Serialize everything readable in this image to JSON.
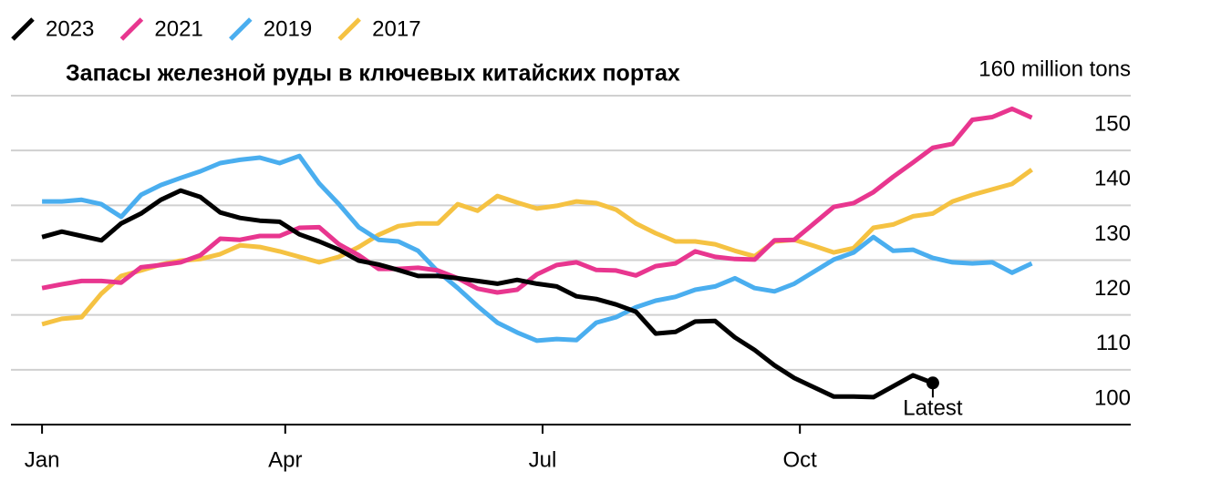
{
  "chart_data": {
    "type": "line",
    "title": "Запасы железной руды в ключевых китайских портах",
    "annotation": "Latest",
    "x": [
      0,
      7,
      14,
      21,
      28,
      35,
      42,
      49,
      56,
      63,
      70,
      77,
      84,
      91,
      98,
      105,
      112,
      119,
      126,
      133,
      140,
      147,
      154,
      161,
      168,
      175,
      182,
      189,
      196,
      203,
      210,
      217,
      224,
      231,
      238,
      245,
      252,
      259,
      266,
      273,
      280,
      287,
      294,
      301,
      308,
      315,
      322,
      329,
      336,
      343,
      350
    ],
    "xlim": [
      -11,
      385
    ],
    "xticks": [
      {
        "value": 0,
        "label": "Jan"
      },
      {
        "value": 86,
        "label": "Apr"
      },
      {
        "value": 177,
        "label": "Jul"
      },
      {
        "value": 268,
        "label": "Oct"
      }
    ],
    "ylim": [
      100,
      160
    ],
    "yticks": [
      100,
      110,
      120,
      130,
      140,
      150,
      {
        "value": 160,
        "label": "160 million tons"
      }
    ],
    "grid": true,
    "series": [
      {
        "name": "2023",
        "color": "#000000",
        "values": [
          134.2,
          135.2,
          134.4,
          133.6,
          136.7,
          138.5,
          141.0,
          142.7,
          141.5,
          138.7,
          137.7,
          137.2,
          137.0,
          134.7,
          133.4,
          131.9,
          129.9,
          129.2,
          128.2,
          127.1,
          127.1,
          126.7,
          126.2,
          125.7,
          126.4,
          125.7,
          125.2,
          123.4,
          122.9,
          121.9,
          120.6,
          116.6,
          116.9,
          118.8,
          118.9,
          115.9,
          113.6,
          110.8,
          108.5,
          106.8,
          105.1,
          105.1,
          105.0,
          107.0,
          109.0,
          107.6,
          null,
          null,
          null,
          null,
          null
        ]
      },
      {
        "name": "2021",
        "color": "#e8368f",
        "values": [
          124.9,
          125.6,
          126.2,
          126.2,
          125.9,
          128.7,
          129.1,
          129.6,
          130.9,
          133.9,
          133.7,
          134.4,
          134.4,
          135.9,
          136.0,
          132.9,
          130.9,
          128.4,
          128.4,
          128.6,
          128.1,
          126.7,
          124.8,
          124.1,
          124.6,
          127.4,
          129.1,
          129.6,
          128.2,
          128.1,
          127.2,
          128.9,
          129.4,
          131.6,
          130.6,
          130.2,
          130.1,
          133.6,
          133.7,
          136.7,
          139.7,
          140.4,
          142.4,
          145.2,
          147.8,
          150.5,
          151.2,
          155.6,
          156.1,
          157.6,
          156.0
        ]
      },
      {
        "name": "2019",
        "color": "#4aaeef",
        "values": [
          140.7,
          140.7,
          141.0,
          140.2,
          137.9,
          141.9,
          143.7,
          145.0,
          146.2,
          147.7,
          148.3,
          148.7,
          147.7,
          149.0,
          144.0,
          140.2,
          136.0,
          133.7,
          133.4,
          131.7,
          127.9,
          124.9,
          121.6,
          118.6,
          116.8,
          115.3,
          115.6,
          115.4,
          118.6,
          119.6,
          121.4,
          122.6,
          123.3,
          124.6,
          125.2,
          126.7,
          124.9,
          124.3,
          125.7,
          127.9,
          130.1,
          131.4,
          134.2,
          131.7,
          131.9,
          130.4,
          129.6,
          129.4,
          129.6,
          127.7,
          129.4
        ]
      },
      {
        "name": "2017",
        "color": "#f5c242",
        "values": [
          118.3,
          119.3,
          119.6,
          123.9,
          127.1,
          128.1,
          129.2,
          129.9,
          130.2,
          131.1,
          132.7,
          132.4,
          131.6,
          130.6,
          129.6,
          130.6,
          132.4,
          134.6,
          136.2,
          136.7,
          136.7,
          140.2,
          139.0,
          141.7,
          140.5,
          139.4,
          139.9,
          140.7,
          140.4,
          139.2,
          136.7,
          134.9,
          133.4,
          133.4,
          132.9,
          131.7,
          130.7,
          133.4,
          133.7,
          132.6,
          131.4,
          132.2,
          135.9,
          136.5,
          138.0,
          138.5,
          140.7,
          141.9,
          142.9,
          143.9,
          146.5
        ]
      }
    ]
  }
}
